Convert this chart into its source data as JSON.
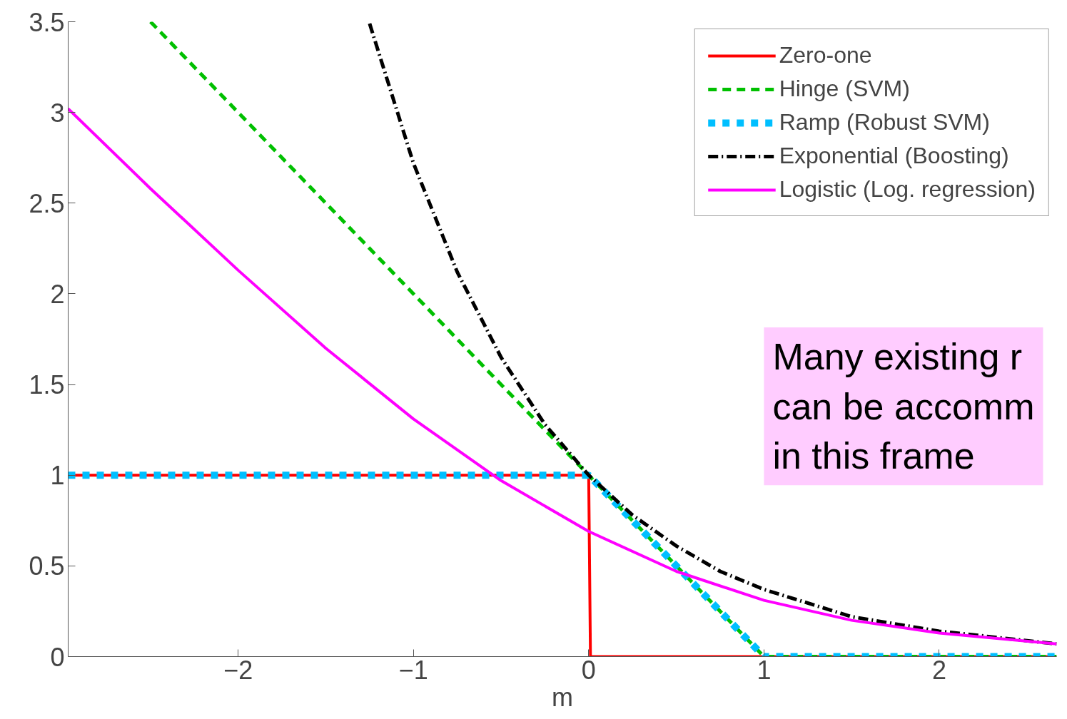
{
  "chart_data": {
    "type": "line",
    "xlabel": "m",
    "xlim": [
      -2.97,
      2.67
    ],
    "ylim": [
      0,
      3.5
    ],
    "xticks": [
      {
        "value": -2,
        "label": "−2"
      },
      {
        "value": -1,
        "label": "−1"
      },
      0,
      1,
      2
    ],
    "yticks": [
      0,
      0.5,
      1,
      1.5,
      2,
      2.5,
      3,
      3.5
    ],
    "grid": false,
    "legend": "top right",
    "series": [
      {
        "name": "Zero-one",
        "color": "#ff0000",
        "line_style": "solid",
        "x": [
          -2.97,
          0,
          0.01,
          2.67
        ],
        "values": [
          1,
          1,
          0,
          0
        ]
      },
      {
        "name": "Hinge (SVM)",
        "color": "#00c000",
        "line_style": "dashed",
        "x": [
          -2.5,
          1,
          2.67
        ],
        "values": [
          3.5,
          0,
          0
        ]
      },
      {
        "name": "Ramp (Robust SVM)",
        "color": "#00bfff",
        "line_style": "dotted",
        "x": [
          -2.97,
          0,
          1,
          2.67
        ],
        "values": [
          1,
          1,
          0,
          0
        ]
      },
      {
        "name": "Exponential (Boosting)",
        "color": "#000000",
        "line_style": "dashdot",
        "x": [
          -1.25,
          -1,
          -0.75,
          -0.5,
          -0.25,
          0,
          0.25,
          0.5,
          0.75,
          1,
          1.5,
          2,
          2.67
        ],
        "values": [
          3.49,
          2.72,
          2.12,
          1.65,
          1.28,
          1,
          0.78,
          0.61,
          0.47,
          0.37,
          0.22,
          0.14,
          0.07
        ]
      },
      {
        "name": "Logistic (Log. regression)",
        "color": "#ff00ff",
        "line_style": "solid",
        "x": [
          -2.97,
          -2.5,
          -2,
          -1.5,
          -1,
          -0.5,
          0,
          0.5,
          1,
          1.5,
          2,
          2.67
        ],
        "values": [
          3.02,
          2.58,
          2.13,
          1.7,
          1.31,
          0.97,
          0.69,
          0.47,
          0.31,
          0.2,
          0.13,
          0.07
        ]
      }
    ],
    "annotations": [
      "Many existing r\ncan be accomm\nin this frame"
    ]
  }
}
